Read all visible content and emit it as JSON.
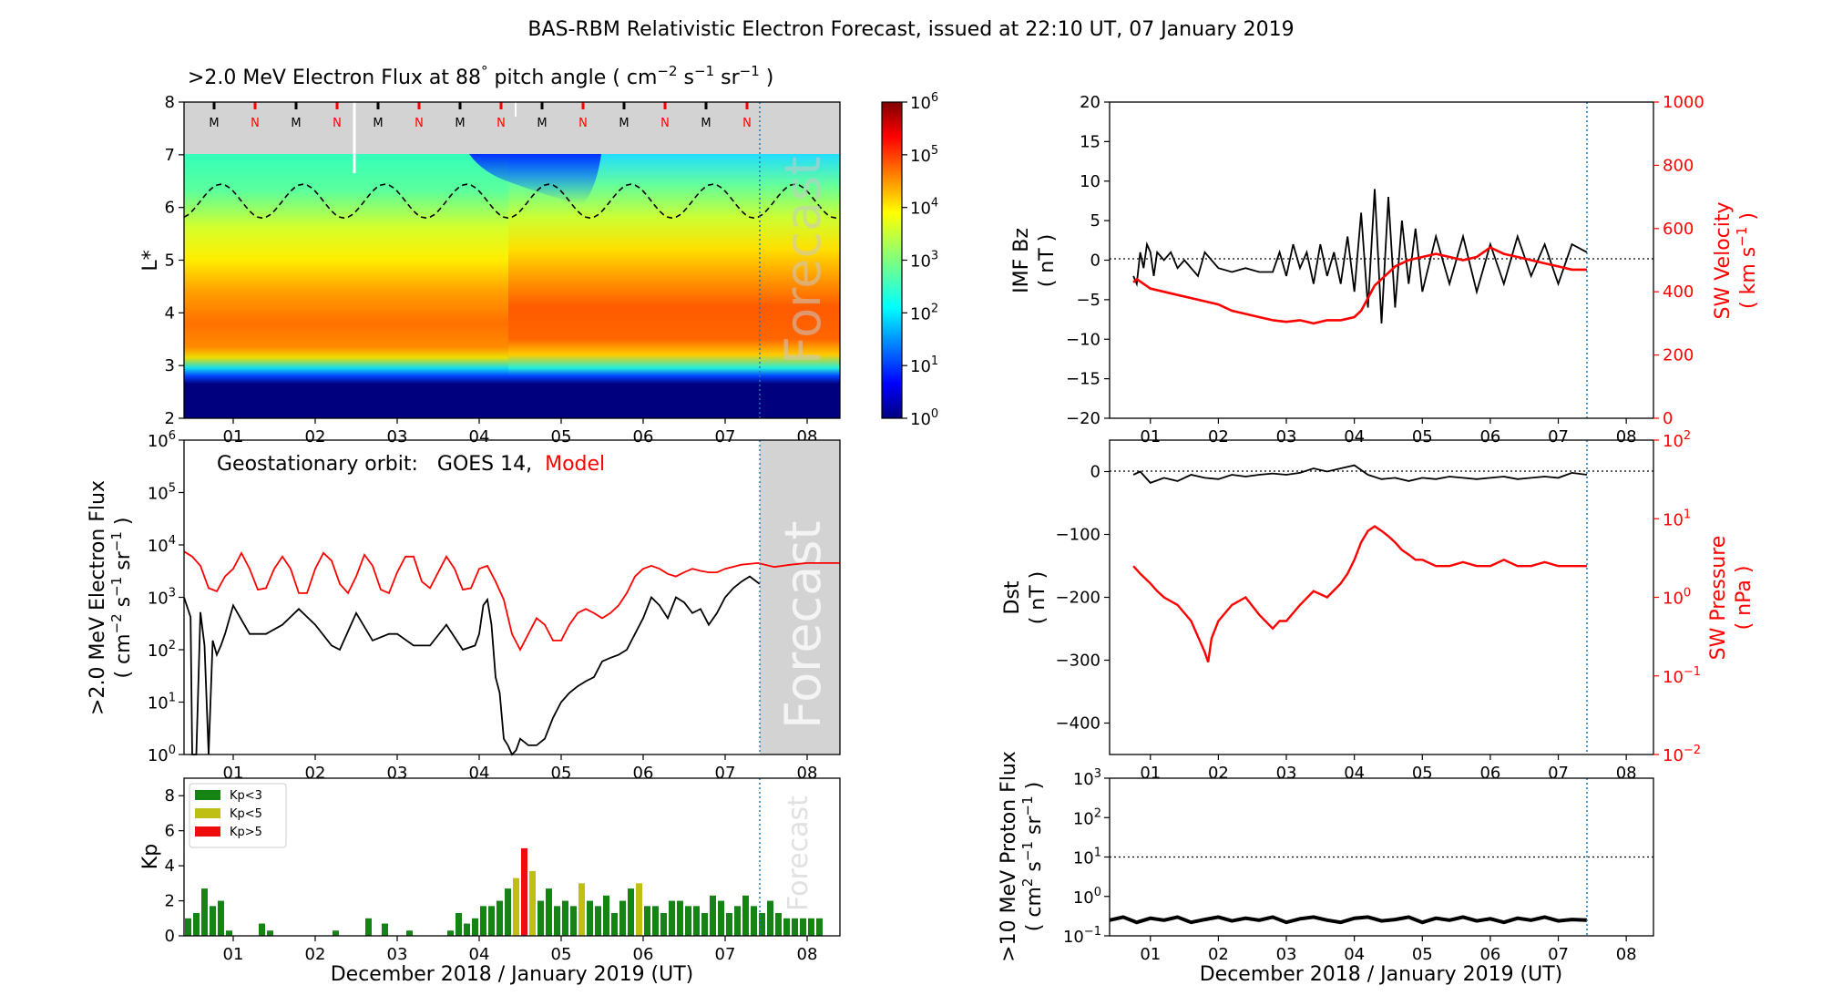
{
  "title": "BAS-RBM Relativistic Electron Forecast, issued at 22:10 UT, 07 January 2019",
  "xaxis_label": "December 2018 / January 2019 (UT)",
  "date_ticks": [
    "01",
    "02",
    "03",
    "04",
    "05",
    "06",
    "07",
    "08"
  ],
  "forecast_word": "Forecast",
  "colors": {
    "black": "#000000",
    "red": "#ff0000",
    "forecast_shade": "#d3d3d3",
    "kp_low": "#158415",
    "kp_mid": "#bfbf13",
    "kp_high": "#ef0c0c",
    "issue_line": "#1f77b4"
  },
  "chart_data": [
    {
      "id": "lstar_flux",
      "type": "heatmap",
      "title_main": ">2.0 MeV Electron Flux at 88",
      "title_deg": "°",
      "title_unit_open": " pitch angle ( cm",
      "title_exp1": "−2",
      "title_s": " s",
      "title_exp2": "−1",
      "title_sr": " sr",
      "title_exp3": "−1",
      "title_close": " )",
      "ylabel": "L*",
      "ylim": [
        2,
        8
      ],
      "yticks": [
        "2",
        "3",
        "4",
        "5",
        "6",
        "7",
        "8"
      ],
      "xlim": [
        0.4,
        8.4
      ],
      "mn_markers": [
        "M",
        "N",
        "M",
        "N",
        "M",
        "N",
        "M",
        "N",
        "M",
        "N",
        "M",
        "N",
        "M",
        "N"
      ],
      "colorbar": {
        "ticks": [
          "10",
          "10",
          "10",
          "10",
          "10",
          "10",
          "10"
        ],
        "exps": [
          "0",
          "1",
          "2",
          "3",
          "4",
          "5",
          "6"
        ],
        "log_range": [
          0,
          6
        ],
        "colormap": "jet"
      },
      "forecast_start": 7.42
    },
    {
      "id": "geo_flux",
      "type": "line",
      "annotation_prefix": "Geostationary orbit:   GOES 14,  ",
      "annotation_model": "Model",
      "ylabel_line1": ">2.0 MeV Electron Flux",
      "ylabel_line2_a": "( cm",
      "ylabel_line2_exp1": "−2",
      "ylabel_line2_b": " s",
      "ylabel_line2_exp2": "−1",
      "ylabel_line2_c": " sr",
      "ylabel_line2_exp3": "−1",
      "ylabel_line2_d": " )",
      "ylog": true,
      "ylim": [
        1,
        1000000
      ],
      "yticks": [
        "10",
        "10",
        "10",
        "10",
        "10",
        "10",
        "10"
      ],
      "ytick_exps": [
        "0",
        "1",
        "2",
        "3",
        "4",
        "5",
        "6"
      ],
      "xlim": [
        0.4,
        8.4
      ],
      "forecast_start": 7.42,
      "series": [
        {
          "name": "GOES 14",
          "color": "#000000",
          "x": [
            0.4,
            0.48,
            0.5,
            0.52,
            0.55,
            0.6,
            0.65,
            0.7,
            0.75,
            0.8,
            0.85,
            0.9,
            1.0,
            1.2,
            1.4,
            1.6,
            1.8,
            2.0,
            2.2,
            2.3,
            2.5,
            2.7,
            2.9,
            3.0,
            3.2,
            3.4,
            3.6,
            3.8,
            3.95,
            4.0,
            4.05,
            4.1,
            4.15,
            4.2,
            4.25,
            4.3,
            4.35,
            4.4,
            4.45,
            4.5,
            4.6,
            4.7,
            4.8,
            4.9,
            5.0,
            5.1,
            5.2,
            5.3,
            5.4,
            5.5,
            5.6,
            5.7,
            5.8,
            5.9,
            6.0,
            6.1,
            6.2,
            6.3,
            6.4,
            6.5,
            6.6,
            6.7,
            6.8,
            6.9,
            7.0,
            7.1,
            7.2,
            7.3,
            7.42
          ],
          "y": [
            1000,
            420,
            1,
            1,
            1,
            520,
            120,
            1,
            150,
            80,
            120,
            200,
            700,
            200,
            200,
            300,
            600,
            300,
            120,
            100,
            500,
            150,
            200,
            200,
            120,
            120,
            300,
            100,
            120,
            200,
            700,
            900,
            300,
            30,
            15,
            2,
            1.5,
            1,
            1.2,
            2,
            1.5,
            1.5,
            2,
            5,
            10,
            15,
            20,
            25,
            30,
            60,
            70,
            80,
            100,
            200,
            400,
            1000,
            700,
            400,
            1000,
            800,
            500,
            600,
            300,
            500,
            1000,
            1500,
            2000,
            2500,
            1800
          ]
        },
        {
          "name": "Model",
          "color": "#ff0000",
          "x": [
            0.4,
            0.5,
            0.6,
            0.7,
            0.8,
            0.9,
            1.0,
            1.1,
            1.2,
            1.3,
            1.4,
            1.5,
            1.6,
            1.7,
            1.8,
            1.9,
            2.0,
            2.1,
            2.2,
            2.3,
            2.4,
            2.5,
            2.6,
            2.7,
            2.8,
            2.9,
            3.0,
            3.1,
            3.2,
            3.3,
            3.4,
            3.5,
            3.6,
            3.7,
            3.8,
            3.9,
            4.0,
            4.1,
            4.2,
            4.3,
            4.4,
            4.5,
            4.6,
            4.7,
            4.8,
            4.9,
            5.0,
            5.1,
            5.2,
            5.3,
            5.4,
            5.5,
            5.6,
            5.7,
            5.8,
            5.9,
            6.0,
            6.1,
            6.2,
            6.3,
            6.4,
            6.5,
            6.6,
            6.7,
            6.8,
            6.9,
            7.0,
            7.2,
            7.4,
            7.6,
            7.8,
            8.0,
            8.2,
            8.4
          ],
          "y": [
            7500,
            6000,
            4000,
            1500,
            1300,
            2500,
            3500,
            7000,
            3500,
            1400,
            1500,
            3500,
            6000,
            3500,
            1200,
            1200,
            3500,
            7000,
            5000,
            1800,
            1200,
            2500,
            6500,
            4000,
            1400,
            1200,
            3000,
            6000,
            6000,
            2000,
            1500,
            3000,
            6000,
            3500,
            1400,
            1500,
            3500,
            4000,
            2000,
            900,
            200,
            100,
            200,
            400,
            300,
            150,
            150,
            300,
            500,
            600,
            500,
            400,
            500,
            700,
            1200,
            2500,
            3500,
            4000,
            3500,
            2800,
            2500,
            3000,
            3500,
            3200,
            3000,
            3000,
            3500,
            4200,
            4500,
            3800,
            4200,
            4500,
            4500,
            4500
          ]
        }
      ]
    },
    {
      "id": "kp",
      "type": "bar",
      "ylabel": "Kp",
      "ylim": [
        0,
        9
      ],
      "yticks": [
        "0",
        "2",
        "4",
        "6",
        "8"
      ],
      "xlim": [
        0.4,
        8.4
      ],
      "forecast_start": 7.42,
      "legend": [
        {
          "label": "Kp<3",
          "color": "#158415"
        },
        {
          "label": "Kp<5",
          "color": "#bfbf13"
        },
        {
          "label": "Kp>5",
          "color": "#ef0c0c"
        }
      ],
      "bar_width_days": 0.1,
      "values": [
        1,
        1.3,
        2.7,
        1.7,
        2,
        0.3,
        0,
        0,
        0,
        0.7,
        0.3,
        0,
        0,
        0,
        0,
        0,
        0,
        0,
        0.3,
        0,
        0,
        0,
        1,
        0,
        0.7,
        0,
        0,
        0.3,
        0,
        0,
        0,
        0,
        0.3,
        1.3,
        0.7,
        1,
        1.7,
        1.7,
        2,
        2.7,
        3.3,
        5,
        3.7,
        2,
        2.7,
        1.7,
        2,
        1.7,
        3,
        2,
        1.7,
        2.3,
        1.3,
        2,
        2.7,
        3,
        1.7,
        1.7,
        1.3,
        2,
        2,
        1.7,
        1.7,
        1.3,
        2.3,
        2,
        1.3,
        1.7,
        2.3,
        1.7,
        1.3,
        2,
        1.3,
        1,
        1,
        1,
        1,
        1
      ]
    },
    {
      "id": "imf_bz",
      "type": "line",
      "ylabel_line1": "IMF Bz",
      "ylabel_line2": "( nT )",
      "y2label_line1": "SW Velocity",
      "y2label_line2_a": "( km s",
      "y2label_line2_exp": "−1",
      "y2label_line2_b": " )",
      "ylim": [
        -20,
        20
      ],
      "yticks": [
        "−20",
        "−15",
        "−10",
        "−5",
        "0",
        "5",
        "10",
        "15",
        "20"
      ],
      "y2lim": [
        0,
        1000
      ],
      "y2ticks": [
        "0",
        "200",
        "400",
        "600",
        "800",
        "1000"
      ],
      "xlim": [
        0.4,
        8.4
      ],
      "series": [
        {
          "name": "IMF Bz",
          "color": "#000000",
          "x": [
            0.75,
            0.8,
            0.85,
            0.9,
            0.95,
            1.0,
            1.05,
            1.1,
            1.2,
            1.3,
            1.4,
            1.5,
            1.6,
            1.7,
            1.8,
            1.9,
            2.0,
            2.2,
            2.4,
            2.6,
            2.8,
            2.9,
            3.0,
            3.1,
            3.2,
            3.3,
            3.4,
            3.5,
            3.6,
            3.7,
            3.8,
            3.9,
            4.0,
            4.1,
            4.2,
            4.3,
            4.4,
            4.5,
            4.6,
            4.7,
            4.8,
            4.9,
            5.0,
            5.2,
            5.4,
            5.6,
            5.8,
            6.0,
            6.2,
            6.4,
            6.6,
            6.8,
            7.0,
            7.2,
            7.42
          ],
          "y": [
            -2,
            -3,
            1,
            -1,
            2,
            1,
            -2,
            1,
            0,
            1,
            -1,
            0,
            -1,
            -2,
            1,
            0,
            -1,
            -1.5,
            -1,
            -1.5,
            -1.5,
            1,
            -2,
            2,
            -1,
            1,
            -3,
            2,
            -2,
            1,
            -3,
            3,
            -4,
            6,
            -6,
            9,
            -8,
            8,
            -6,
            5,
            -3,
            4,
            -4,
            3,
            -3,
            3,
            -4,
            2,
            -3,
            3,
            -2,
            2,
            -3,
            2,
            1
          ]
        },
        {
          "name": "SW Velocity",
          "color": "#ff0000",
          "x": [
            0.75,
            0.8,
            1.0,
            1.2,
            1.4,
            1.6,
            1.8,
            2.0,
            2.2,
            2.4,
            2.6,
            2.8,
            3.0,
            3.2,
            3.4,
            3.6,
            3.8,
            4.0,
            4.1,
            4.2,
            4.3,
            4.4,
            4.5,
            4.6,
            4.8,
            5.0,
            5.2,
            5.4,
            5.6,
            5.8,
            6.0,
            6.2,
            6.4,
            6.6,
            6.8,
            7.0,
            7.2,
            7.42
          ],
          "y": [
            430,
            440,
            410,
            400,
            390,
            380,
            370,
            360,
            340,
            330,
            320,
            310,
            305,
            310,
            300,
            310,
            310,
            320,
            340,
            380,
            420,
            440,
            460,
            480,
            500,
            510,
            520,
            510,
            500,
            510,
            540,
            520,
            510,
            500,
            490,
            480,
            470,
            470
          ]
        }
      ]
    },
    {
      "id": "dst",
      "type": "line",
      "ylabel_line1": "Dst",
      "ylabel_line2": "( nT )",
      "y2label_line1": "SW Pressure",
      "y2label_line2": "( nPa )",
      "ylim": [
        -450,
        50
      ],
      "yticks": [
        "−400",
        "−300",
        "−200",
        "−100",
        "0"
      ],
      "y2log": true,
      "y2lim": [
        0.01,
        100
      ],
      "y2ticks": [
        "10",
        "10",
        "10",
        "10",
        "10"
      ],
      "y2tick_exps": [
        "−2",
        "−1",
        "0",
        "1",
        "2"
      ],
      "xlim": [
        0.4,
        8.4
      ],
      "series": [
        {
          "name": "Dst",
          "color": "#000000",
          "x": [
            0.75,
            0.85,
            1.0,
            1.2,
            1.4,
            1.6,
            1.8,
            2.0,
            2.2,
            2.4,
            2.6,
            2.8,
            3.0,
            3.2,
            3.4,
            3.6,
            3.8,
            4.0,
            4.2,
            4.4,
            4.6,
            4.8,
            5.0,
            5.2,
            5.4,
            5.6,
            5.8,
            6.0,
            6.2,
            6.4,
            6.6,
            6.8,
            7.0,
            7.2,
            7.42
          ],
          "y": [
            -5,
            0,
            -18,
            -10,
            -15,
            -5,
            -10,
            -12,
            -5,
            -8,
            -5,
            -3,
            -5,
            -2,
            5,
            0,
            5,
            10,
            -5,
            -12,
            -10,
            -15,
            -10,
            -12,
            -8,
            -10,
            -12,
            -10,
            -8,
            -12,
            -10,
            -8,
            -10,
            -2,
            -5
          ]
        },
        {
          "name": "SW Pressure",
          "color": "#ff0000",
          "x": [
            0.75,
            0.85,
            1.0,
            1.1,
            1.2,
            1.4,
            1.6,
            1.8,
            1.85,
            1.9,
            2.0,
            2.2,
            2.4,
            2.6,
            2.8,
            2.9,
            3.0,
            3.2,
            3.4,
            3.6,
            3.8,
            3.9,
            4.0,
            4.1,
            4.2,
            4.3,
            4.4,
            4.5,
            4.6,
            4.7,
            4.8,
            4.9,
            5.0,
            5.2,
            5.4,
            5.6,
            5.8,
            6.0,
            6.2,
            6.4,
            6.6,
            6.8,
            7.0,
            7.2,
            7.42
          ],
          "y": [
            2.5,
            2,
            1.5,
            1.2,
            1,
            0.8,
            0.5,
            0.2,
            0.15,
            0.3,
            0.5,
            0.8,
            1,
            0.6,
            0.4,
            0.5,
            0.5,
            0.8,
            1.2,
            1,
            1.5,
            2,
            3,
            5,
            7,
            8,
            7,
            6,
            5,
            4,
            3.5,
            3,
            3,
            2.5,
            2.5,
            2.8,
            2.5,
            2.5,
            3,
            2.5,
            2.5,
            2.8,
            2.5,
            2.5,
            2.5
          ]
        }
      ]
    },
    {
      "id": "proton_flux",
      "type": "line",
      "ylabel_line1": ">10 MeV Proton Flux",
      "ylabel_line2_a": "( cm",
      "ylabel_line2_exp1": "2",
      "ylabel_line2_b": " s",
      "ylabel_line2_exp2": "−1",
      "ylabel_line2_c": " sr",
      "ylabel_line2_exp3": "−1",
      "ylabel_line2_d": " )",
      "ylog": true,
      "ylim": [
        0.1,
        1000
      ],
      "yticks": [
        "10",
        "10",
        "10",
        "10",
        "10"
      ],
      "ytick_exps": [
        "−1",
        "0",
        "1",
        "2",
        "3"
      ],
      "threshold": 10,
      "xlim": [
        0.4,
        8.4
      ],
      "series": [
        {
          "name": "Proton Flux",
          "color": "#000000",
          "x": [
            0.4,
            0.6,
            0.8,
            1.0,
            1.2,
            1.4,
            1.6,
            1.8,
            2.0,
            2.2,
            2.4,
            2.6,
            2.8,
            3.0,
            3.2,
            3.4,
            3.6,
            3.8,
            4.0,
            4.2,
            4.4,
            4.6,
            4.8,
            5.0,
            5.2,
            5.4,
            5.6,
            5.8,
            6.0,
            6.2,
            6.4,
            6.6,
            6.8,
            7.0,
            7.2,
            7.42
          ],
          "y": [
            0.25,
            0.3,
            0.22,
            0.28,
            0.25,
            0.3,
            0.22,
            0.26,
            0.3,
            0.24,
            0.28,
            0.25,
            0.3,
            0.22,
            0.27,
            0.3,
            0.25,
            0.22,
            0.28,
            0.3,
            0.24,
            0.26,
            0.3,
            0.22,
            0.28,
            0.25,
            0.3,
            0.24,
            0.27,
            0.22,
            0.28,
            0.25,
            0.3,
            0.24,
            0.26,
            0.25
          ]
        }
      ]
    }
  ]
}
